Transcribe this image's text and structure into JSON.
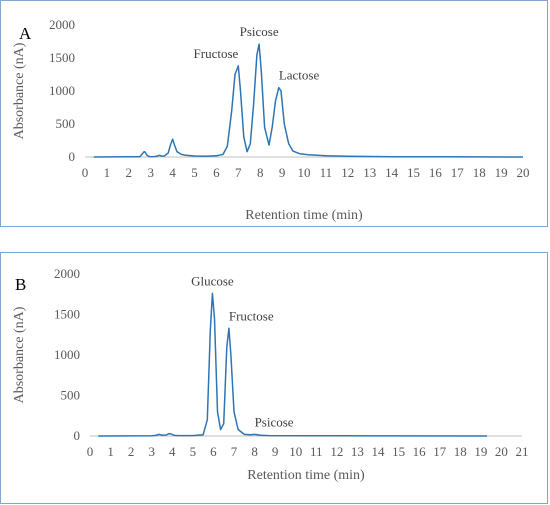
{
  "chart_data": [
    {
      "type": "line",
      "panel_label": "A",
      "xlabel": "Retention time (min)",
      "ylabel": "Absorbance (nA)",
      "xlim": [
        0,
        20
      ],
      "ylim": [
        0,
        2000
      ],
      "x_ticks": [
        0,
        1,
        2,
        3,
        4,
        5,
        6,
        7,
        8,
        9,
        10,
        11,
        12,
        13,
        14,
        15,
        16,
        17,
        18,
        19,
        20
      ],
      "y_ticks": [
        0,
        500,
        1000,
        1500,
        2000
      ],
      "grid": false,
      "series": [
        {
          "color": "#2e75b6",
          "x": [
            0.4,
            2.5,
            2.6,
            2.7,
            2.75,
            2.8,
            2.9,
            3.0,
            3.2,
            3.3,
            3.4,
            3.5,
            3.6,
            3.8,
            3.9,
            4.0,
            4.1,
            4.2,
            4.4,
            4.6,
            5.0,
            5.5,
            6.0,
            6.3,
            6.5,
            6.7,
            6.85,
            7.0,
            7.1,
            7.25,
            7.4,
            7.55,
            7.7,
            7.85,
            7.95,
            8.05,
            8.2,
            8.4,
            8.55,
            8.7,
            8.85,
            8.95,
            9.1,
            9.3,
            9.5,
            9.8,
            10.2,
            11.0,
            12.0,
            14.0,
            16.0,
            18.0,
            20.0
          ],
          "y": [
            0,
            5,
            40,
            80,
            75,
            40,
            10,
            5,
            8,
            15,
            25,
            15,
            10,
            60,
            180,
            270,
            170,
            80,
            40,
            25,
            15,
            12,
            18,
            40,
            160,
            700,
            1250,
            1380,
            1000,
            300,
            80,
            200,
            800,
            1550,
            1710,
            1300,
            450,
            180,
            450,
            850,
            1050,
            1000,
            500,
            200,
            90,
            50,
            35,
            20,
            10,
            5,
            3,
            2,
            0
          ]
        }
      ],
      "annotations": [
        {
          "text": "Fructose",
          "x": 7.0,
          "y": 1380
        },
        {
          "text": "Psicose",
          "x": 7.95,
          "y": 1710
        },
        {
          "text": "Lactose",
          "x": 8.85,
          "y": 1050
        }
      ]
    },
    {
      "type": "line",
      "panel_label": "B",
      "xlabel": "Retention time (min)",
      "ylabel": "Absorbance (nA)",
      "xlim": [
        0,
        21
      ],
      "ylim": [
        0,
        2000
      ],
      "x_ticks": [
        0,
        1,
        2,
        3,
        4,
        5,
        6,
        7,
        8,
        9,
        10,
        11,
        12,
        13,
        14,
        15,
        16,
        17,
        18,
        19,
        20,
        21
      ],
      "y_ticks": [
        0,
        500,
        1000,
        1500,
        2000
      ],
      "grid": false,
      "series": [
        {
          "color": "#2e75b6",
          "x": [
            0.4,
            3.0,
            3.2,
            3.35,
            3.5,
            3.7,
            3.85,
            3.95,
            4.1,
            4.3,
            5.0,
            5.5,
            5.7,
            5.85,
            5.95,
            6.05,
            6.2,
            6.35,
            6.5,
            6.65,
            6.75,
            6.85,
            7.0,
            7.2,
            7.5,
            7.8,
            8.0,
            8.3,
            8.7,
            10.0,
            12.0,
            15.0,
            19.3
          ],
          "y": [
            0,
            2,
            8,
            20,
            10,
            12,
            30,
            25,
            8,
            5,
            5,
            15,
            200,
            1300,
            1760,
            1450,
            300,
            80,
            150,
            1100,
            1330,
            1000,
            300,
            80,
            20,
            15,
            20,
            10,
            5,
            3,
            2,
            1,
            0
          ]
        }
      ],
      "annotations": [
        {
          "text": "Glucose",
          "x": 5.95,
          "y": 1760
        },
        {
          "text": "Fructose",
          "x": 6.75,
          "y": 1330
        },
        {
          "text": "Psicose",
          "x": 8.0,
          "y": 20
        }
      ]
    }
  ]
}
